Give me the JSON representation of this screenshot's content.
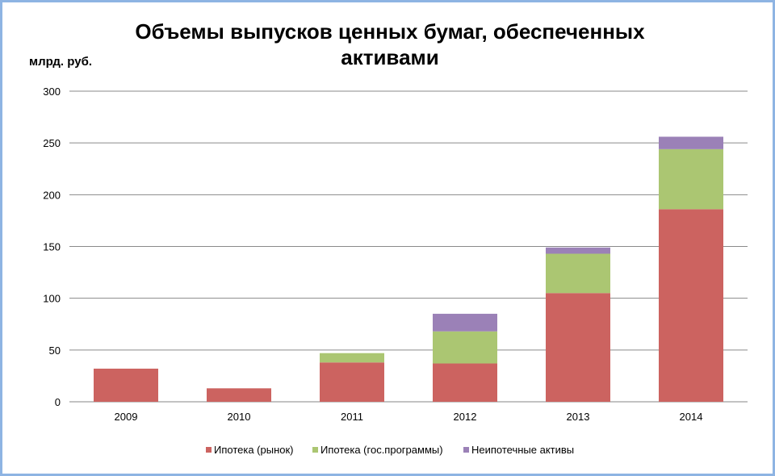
{
  "chart_data": {
    "type": "bar",
    "stacked": true,
    "title": "Объемы выпусков ценных бумаг, обеспеченных активами",
    "ylabel": "млрд. руб.",
    "xlabel": "",
    "categories": [
      "2009",
      "2010",
      "2011",
      "2012",
      "2013",
      "2014"
    ],
    "series": [
      {
        "name": "Ипотека (рынок)",
        "color": "#cc6360",
        "values": [
          32,
          13,
          38,
          37,
          105,
          186
        ]
      },
      {
        "name": "Ипотека (гос.программы)",
        "color": "#abc672",
        "values": [
          0,
          0,
          9,
          31,
          38,
          58
        ]
      },
      {
        "name": "Неипотечные активы",
        "color": "#9b81b7",
        "values": [
          0,
          0,
          0,
          17,
          6,
          12
        ]
      }
    ],
    "ylim": [
      0,
      300
    ],
    "yticks": [
      "0",
      "50",
      "100",
      "150",
      "200",
      "250",
      "300"
    ],
    "grid": true,
    "legend_position": "bottom"
  }
}
